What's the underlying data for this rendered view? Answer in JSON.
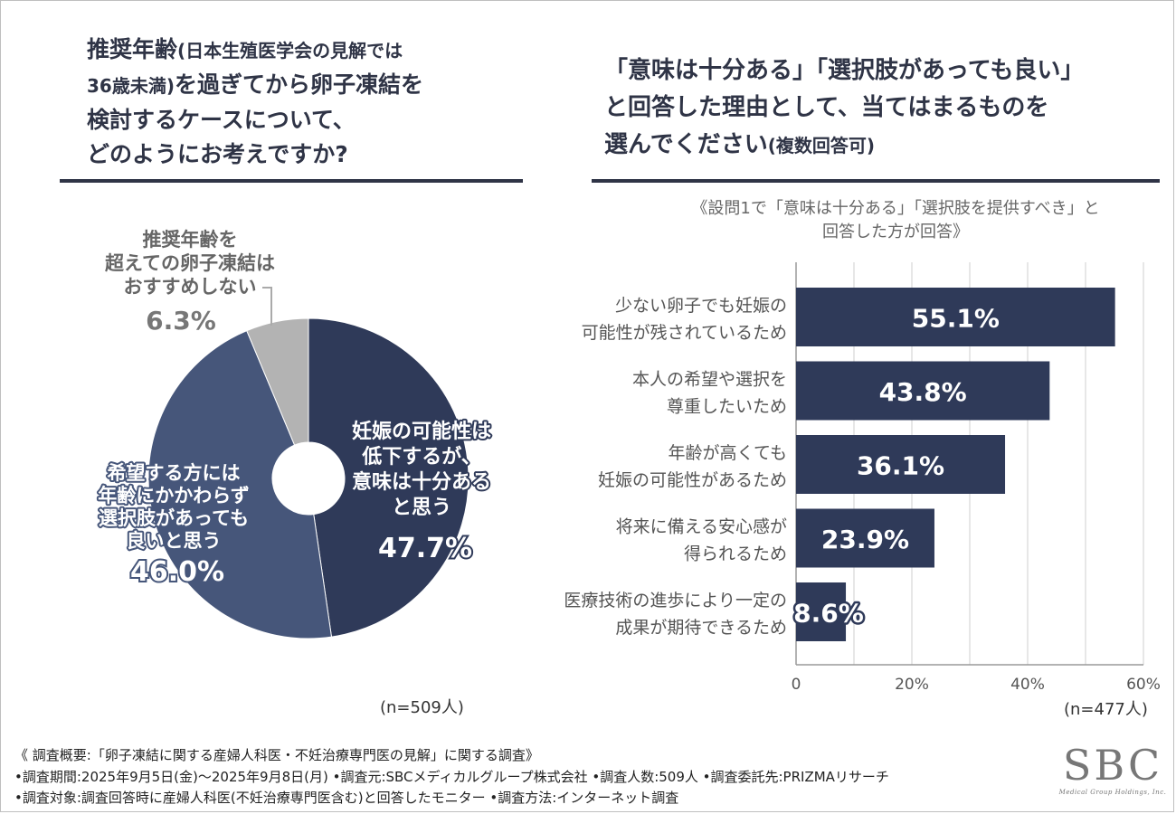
{
  "left": {
    "title_lines": [
      "推奨年齢",
      "(日本生殖医学会の見解では",
      "36歳未満)",
      "を過ぎてから卵子凍結を",
      "検討するケースについて、",
      "どのようにお考えですか?"
    ],
    "n_label": "(n=509人)"
  },
  "right": {
    "title_lines": [
      "「意味は十分ある」「選択肢があっても良い」",
      "と回答した理由として、当てはまるものを",
      "選んでください",
      "(複数回答可)"
    ],
    "note_lines": [
      "《設問1で「意味は十分ある」「選択肢を提供すべき」と",
      "回答した方が回答》"
    ],
    "n_label": "(n=477人)"
  },
  "footer": {
    "line1": "《 調査概要:「卵子凍結に関する産婦人科医・不妊治療専門医の見解」に関する調査》",
    "line2": "•調査期間:2025年9月5日(金)〜2025年9月8日(月) •調査元:SBCメディカルグループ株式会社 •調査人数:509人 •調査委託先:PRIZMAリサーチ",
    "line3": "•調査対象:調査回答時に産婦人科医(不妊治療専門医含む)と回答したモニター •調査方法:インターネット調査"
  },
  "logo": {
    "text": "SBC",
    "sub": "Medical Group Holdings, Inc."
  },
  "colors": {
    "navy": "#2f3a59",
    "slate": "#46567a",
    "gray": "#b3b3b3",
    "axis": "#9a9a9a",
    "grid": "#cfcfcf"
  },
  "chart_data": [
    {
      "type": "pie",
      "title": "推奨年齢(日本生殖医学会の見解では36歳未満)を過ぎてから卵子凍結を検討するケースについて、どのようにお考えですか?",
      "donut": true,
      "slices": [
        {
          "label_lines": [
            "妊娠の可能性は",
            "低下するが、",
            "意味は十分ある",
            "と思う"
          ],
          "value": 47.7,
          "value_label": "47.7%",
          "color": "#2f3a59"
        },
        {
          "label_lines": [
            "希望する方には",
            "年齢にかかわらず",
            "選択肢があっても",
            "良いと思う"
          ],
          "value": 46.0,
          "value_label": "46.0%",
          "color": "#46567a"
        },
        {
          "label_lines": [
            "推奨年齢を",
            "超えての卵子凍結は",
            "おすすめしない"
          ],
          "value": 6.3,
          "value_label": "6.3%",
          "color": "#b3b3b3"
        }
      ]
    },
    {
      "type": "bar",
      "orientation": "horizontal",
      "title": "「意味は十分ある」「選択肢があっても良い」と回答した理由として、当てはまるものを選んでください(複数回答可)",
      "categories": [
        [
          "少ない卵子でも妊娠の",
          "可能性が残されているため"
        ],
        [
          "本人の希望や選択を",
          "尊重したいため"
        ],
        [
          "年齢が高くても",
          "妊娠の可能性があるため"
        ],
        [
          "将来に備える安心感が",
          "得られるため"
        ],
        [
          "医療技術の進歩により一定の",
          "成果が期待できるため"
        ]
      ],
      "values": [
        55.1,
        43.8,
        36.1,
        23.9,
        8.6
      ],
      "value_labels": [
        "55.1%",
        "43.8%",
        "36.1%",
        "23.9%",
        "8.6%"
      ],
      "xlim": [
        0,
        60
      ],
      "ticks": [
        0,
        20,
        40,
        60
      ],
      "tick_labels": [
        "0",
        "20%",
        "40%",
        "60%"
      ],
      "grid": true
    }
  ]
}
